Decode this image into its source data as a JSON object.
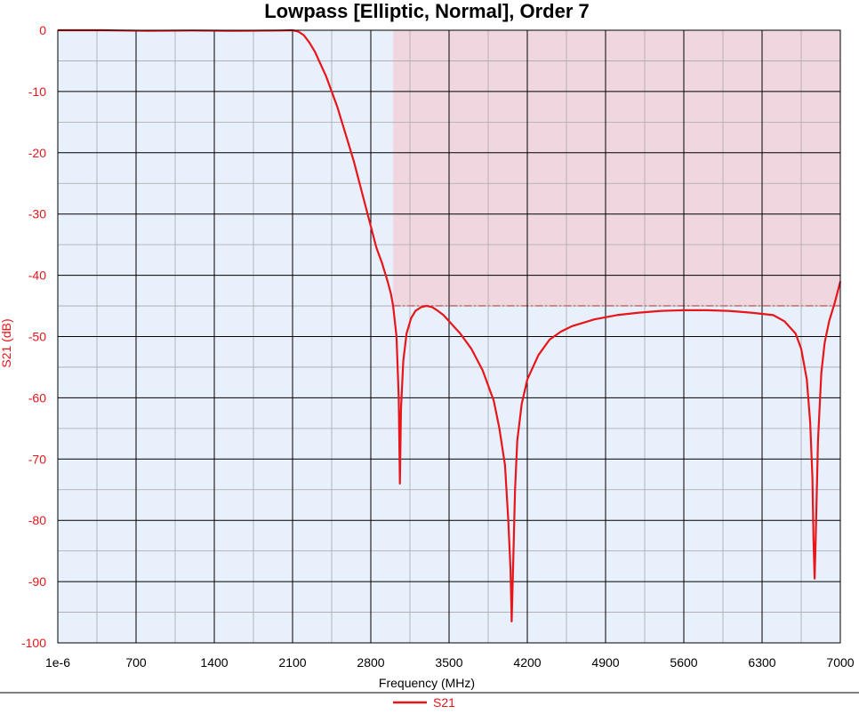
{
  "chart_data": {
    "type": "line",
    "title": "Lowpass [Elliptic, Normal], Order 7",
    "xlabel": "Frequency (MHz)",
    "ylabel": "S21 (dB)",
    "xlim": [
      0,
      7000
    ],
    "ylim": [
      -100,
      0
    ],
    "x_ticks": [
      "1e-6",
      "700",
      "1400",
      "2100",
      "2800",
      "3500",
      "4200",
      "4900",
      "5600",
      "6300",
      "7000"
    ],
    "y_ticks": [
      "0",
      "-10",
      "-20",
      "-30",
      "-40",
      "-50",
      "-60",
      "-70",
      "-80",
      "-90",
      "-100"
    ],
    "grid": true,
    "legend": "bottom-center",
    "stopband_mask": {
      "start_mhz": 3000,
      "end_mhz": 7000,
      "limit_db": -45
    },
    "series": [
      {
        "name": "S21",
        "color": "#e8151b",
        "x": [
          0,
          400,
          800,
          1200,
          1600,
          2000,
          2100,
          2150,
          2200,
          2250,
          2300,
          2350,
          2400,
          2450,
          2500,
          2550,
          2600,
          2650,
          2700,
          2750,
          2800,
          2850,
          2900,
          2950,
          2980,
          3000,
          3030,
          3050,
          3060,
          3070,
          3090,
          3120,
          3160,
          3200,
          3250,
          3300,
          3350,
          3400,
          3450,
          3500,
          3600,
          3700,
          3800,
          3900,
          3950,
          4000,
          4030,
          4050,
          4060,
          4075,
          4090,
          4110,
          4150,
          4200,
          4300,
          4400,
          4500,
          4600,
          4800,
          5000,
          5200,
          5400,
          5600,
          5800,
          6000,
          6200,
          6400,
          6500,
          6600,
          6650,
          6700,
          6730,
          6750,
          6760,
          6770,
          6780,
          6800,
          6830,
          6860,
          6900,
          6950,
          7000
        ],
        "values": [
          0,
          0,
          -0.1,
          -0.05,
          -0.1,
          -0.05,
          0,
          -0.2,
          -0.8,
          -2.0,
          -3.5,
          -5.5,
          -7.5,
          -10.0,
          -12.5,
          -15.5,
          -18.5,
          -21.5,
          -25.0,
          -28.5,
          -32.0,
          -35.5,
          -38.0,
          -41.0,
          -43.0,
          -45.0,
          -50.0,
          -60.0,
          -74.0,
          -62.0,
          -54.0,
          -49.5,
          -47.0,
          -45.8,
          -45.2,
          -45.0,
          -45.2,
          -45.8,
          -46.5,
          -47.5,
          -49.5,
          -52.0,
          -55.5,
          -60.5,
          -65.0,
          -71.0,
          -80.0,
          -88.0,
          -96.5,
          -86.0,
          -75.0,
          -67.0,
          -61.0,
          -57.0,
          -53.0,
          -50.5,
          -49.2,
          -48.3,
          -47.2,
          -46.5,
          -46.1,
          -45.8,
          -45.7,
          -45.7,
          -45.8,
          -46.1,
          -46.5,
          -47.5,
          -49.5,
          -52.0,
          -57.0,
          -64.0,
          -73.0,
          -83.0,
          -89.5,
          -83.0,
          -67.0,
          -56.0,
          -51.0,
          -47.5,
          -44.5,
          -41.0
        ]
      }
    ]
  }
}
